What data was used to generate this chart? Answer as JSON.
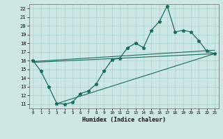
{
  "title": "",
  "xlabel": "Humidex (Indice chaleur)",
  "bg_color": "#cde8e4",
  "grid_color": "#a8d0cc",
  "line_color": "#1a6b5a",
  "xlim": [
    -0.5,
    23.5
  ],
  "ylim": [
    10.5,
    22.5
  ],
  "xticks": [
    0,
    1,
    2,
    3,
    4,
    5,
    6,
    7,
    8,
    9,
    10,
    11,
    12,
    13,
    14,
    15,
    16,
    17,
    18,
    19,
    20,
    21,
    22,
    23
  ],
  "yticks": [
    11,
    12,
    13,
    14,
    15,
    16,
    17,
    18,
    19,
    20,
    21,
    22
  ],
  "line1_x": [
    0,
    1,
    2,
    3,
    4,
    5,
    6,
    7,
    8,
    9,
    10,
    11,
    12,
    13,
    14,
    15,
    16,
    17,
    18,
    19,
    20,
    21,
    22,
    23
  ],
  "line1_y": [
    16.0,
    14.8,
    13.0,
    11.1,
    11.0,
    11.2,
    12.2,
    12.5,
    13.3,
    14.8,
    16.1,
    16.3,
    17.5,
    18.0,
    17.5,
    19.5,
    20.5,
    22.3,
    19.3,
    19.5,
    19.3,
    18.3,
    17.1,
    16.8
  ],
  "line2_x": [
    0,
    23
  ],
  "line2_y": [
    15.8,
    16.8
  ],
  "line3_x": [
    0,
    23
  ],
  "line3_y": [
    15.9,
    17.2
  ],
  "line4_x": [
    3,
    23
  ],
  "line4_y": [
    11.05,
    16.8
  ]
}
